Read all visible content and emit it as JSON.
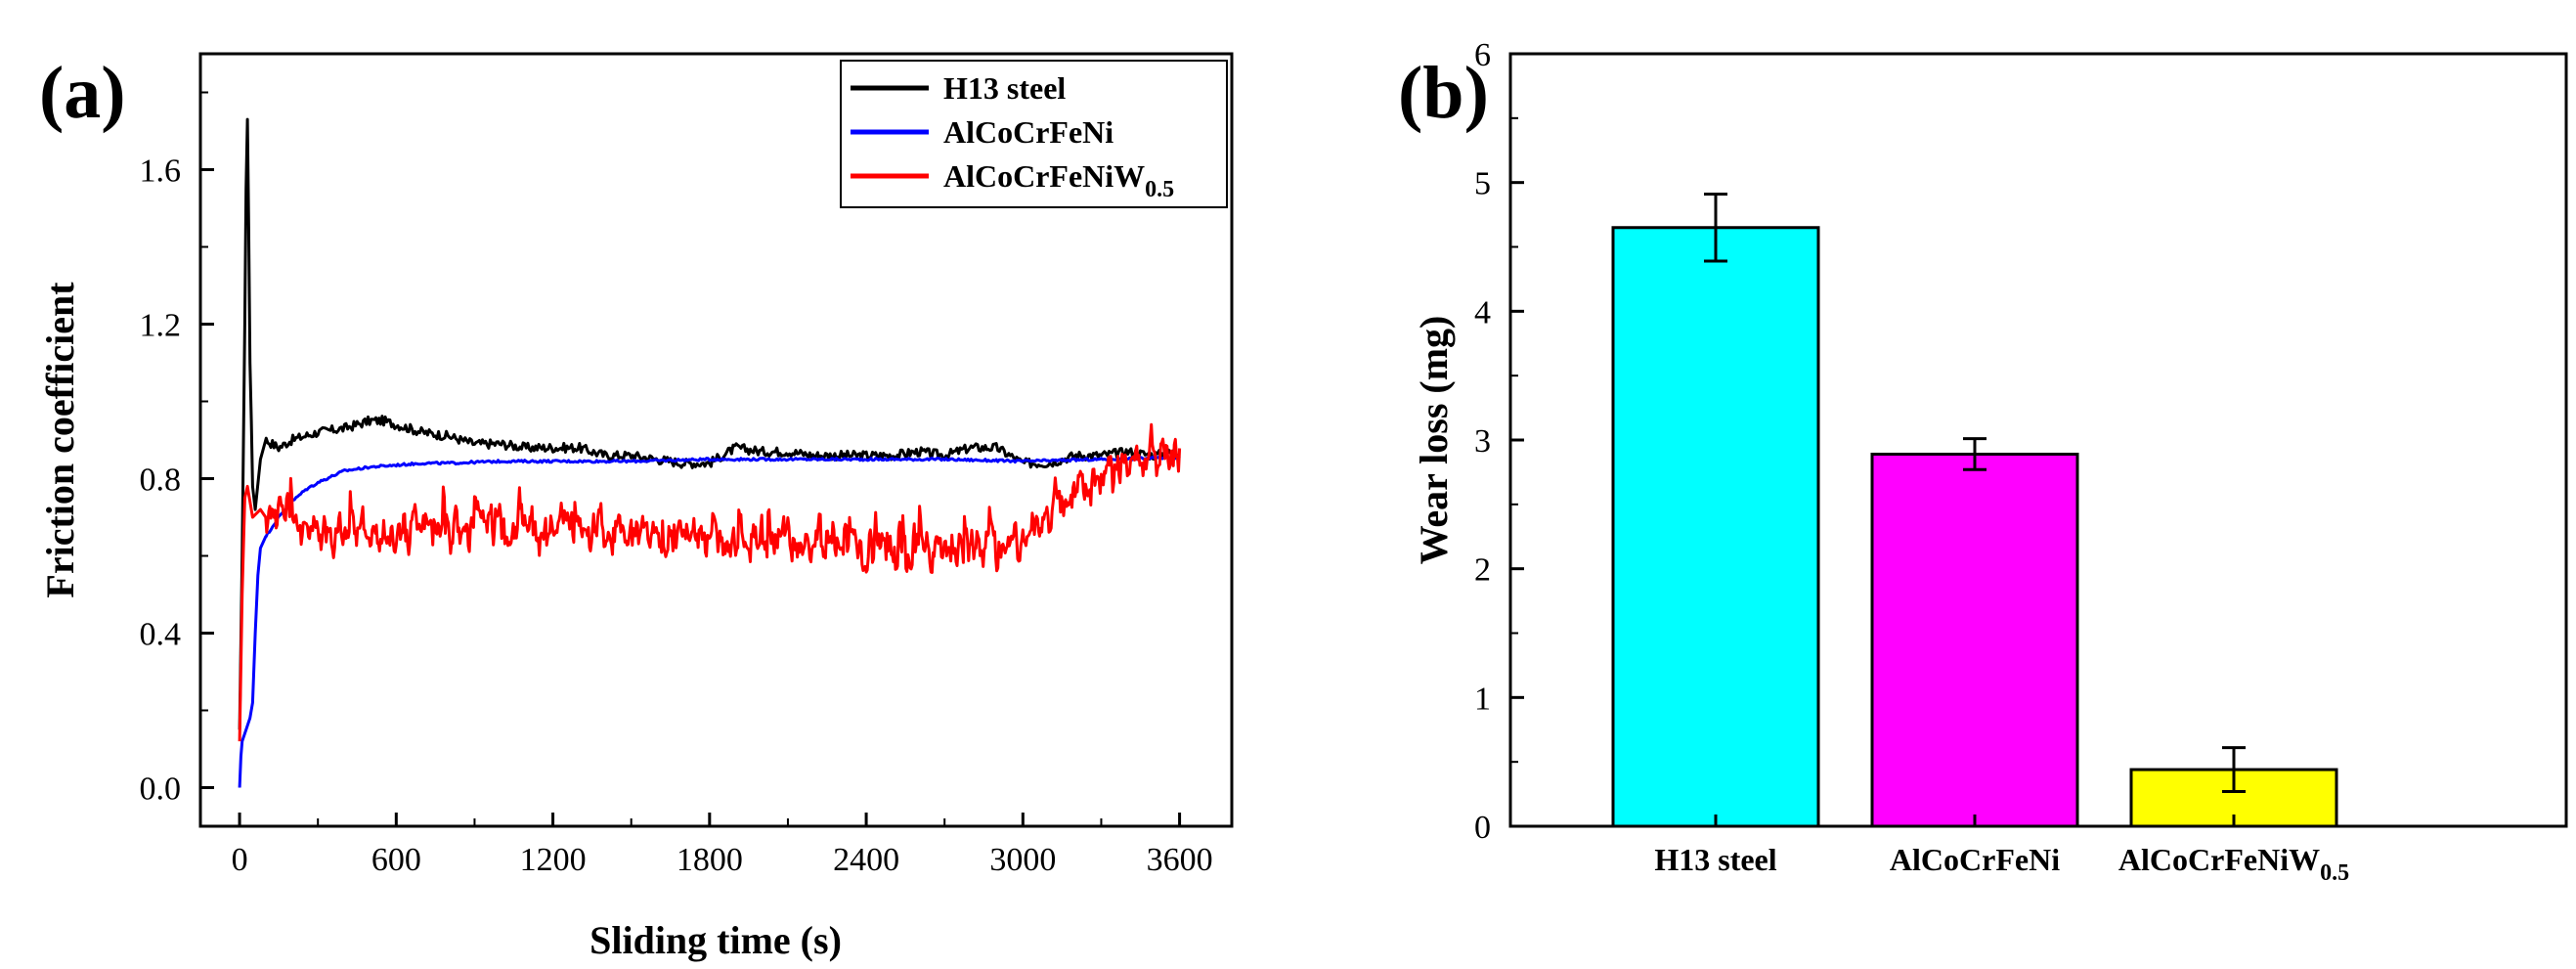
{
  "chart_data": [
    {
      "panel": "(a)",
      "type": "line",
      "xlabel": "Sliding time (s)",
      "ylabel": "Friction coefficient",
      "xlim": [
        -150,
        3800
      ],
      "ylim": [
        -0.1,
        1.9
      ],
      "xticks": [
        "0",
        "600",
        "1200",
        "1800",
        "2400",
        "3000",
        "3600"
      ],
      "yticks": [
        "0.0",
        "0.4",
        "0.8",
        "1.2",
        "1.6"
      ],
      "legend_position": "top-right",
      "series": [
        {
          "name": "H13 steel",
          "color": "#000000",
          "noise": 0.012,
          "x": [
            0,
            10,
            20,
            25,
            30,
            35,
            40,
            45,
            50,
            60,
            80,
            100,
            150,
            200,
            300,
            400,
            500,
            550,
            600,
            700,
            800,
            900,
            1000,
            1100,
            1200,
            1300,
            1400,
            1500,
            1600,
            1700,
            1800,
            1900,
            2000,
            2100,
            2200,
            2300,
            2400,
            2500,
            2600,
            2700,
            2800,
            2900,
            3000,
            3100,
            3200,
            3300,
            3400,
            3500,
            3600
          ],
          "y": [
            0.15,
            0.6,
            1.2,
            1.55,
            1.73,
            1.45,
            1.1,
            0.95,
            0.78,
            0.72,
            0.85,
            0.9,
            0.88,
            0.9,
            0.92,
            0.93,
            0.95,
            0.95,
            0.94,
            0.92,
            0.91,
            0.89,
            0.89,
            0.88,
            0.88,
            0.88,
            0.86,
            0.86,
            0.85,
            0.84,
            0.84,
            0.88,
            0.87,
            0.87,
            0.86,
            0.86,
            0.86,
            0.86,
            0.87,
            0.86,
            0.88,
            0.88,
            0.84,
            0.84,
            0.86,
            0.86,
            0.87,
            0.86,
            0.87
          ]
        },
        {
          "name": "AlCoCrFeNi",
          "color": "#0000ff",
          "noise": 0.003,
          "x": [
            0,
            5,
            10,
            20,
            40,
            50,
            60,
            70,
            80,
            100,
            150,
            200,
            250,
            300,
            400,
            500,
            600,
            700,
            800,
            1000,
            1200,
            1500,
            1800,
            2100,
            2400,
            2700,
            3000,
            3300,
            3600
          ],
          "y": [
            0.0,
            0.08,
            0.12,
            0.14,
            0.18,
            0.22,
            0.4,
            0.55,
            0.62,
            0.65,
            0.7,
            0.74,
            0.77,
            0.79,
            0.82,
            0.83,
            0.835,
            0.84,
            0.84,
            0.845,
            0.845,
            0.845,
            0.85,
            0.85,
            0.85,
            0.85,
            0.845,
            0.85,
            0.855
          ]
        },
        {
          "name": "AlCoCrFeNiW0.5",
          "color": "#ff0000",
          "noise": 0.06,
          "x": [
            0,
            10,
            20,
            30,
            50,
            80,
            100,
            200,
            300,
            500,
            700,
            900,
            1100,
            1300,
            1500,
            1700,
            1900,
            2100,
            2300,
            2500,
            2700,
            2900,
            3000,
            3100,
            3200,
            3300,
            3400,
            3500,
            3600
          ],
          "y": [
            0.12,
            0.5,
            0.75,
            0.78,
            0.7,
            0.72,
            0.7,
            0.7,
            0.66,
            0.65,
            0.66,
            0.68,
            0.67,
            0.66,
            0.67,
            0.66,
            0.64,
            0.64,
            0.63,
            0.62,
            0.62,
            0.62,
            0.63,
            0.72,
            0.78,
            0.82,
            0.85,
            0.86,
            0.86
          ]
        }
      ],
      "legend": [
        {
          "label": "H13 steel",
          "sub": "",
          "color": "#000000"
        },
        {
          "label": "AlCoCrFeNi",
          "sub": "",
          "color": "#0000ff"
        },
        {
          "label": "AlCoCrFeNiW",
          "sub": "0.5",
          "color": "#ff0000"
        }
      ]
    },
    {
      "panel": "(b)",
      "type": "bar",
      "xlabel": "",
      "ylabel": "Wear loss (mg)",
      "ylim": [
        0,
        6
      ],
      "yticks": [
        "0",
        "1",
        "2",
        "3",
        "4",
        "5",
        "6"
      ],
      "categories": [
        {
          "label": "H13 steel",
          "sub": ""
        },
        {
          "label": "AlCoCrFeNi",
          "sub": ""
        },
        {
          "label": "AlCoCrFeNiW",
          "sub": "0.5"
        }
      ],
      "values": [
        4.65,
        2.89,
        0.44
      ],
      "errors": [
        0.26,
        0.12,
        0.17
      ],
      "colors": [
        "#00ffff",
        "#ff00ff",
        "#ffff00"
      ]
    }
  ]
}
